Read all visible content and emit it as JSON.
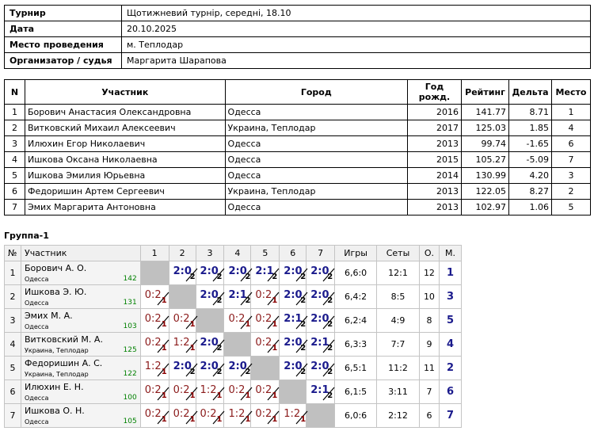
{
  "info": [
    {
      "label": "Турнир",
      "value": "Щотижневий турнір, середні, 18.10"
    },
    {
      "label": "Дата",
      "value": "20.10.2025"
    },
    {
      "label": "Место проведения",
      "value": "м. Теплодар"
    },
    {
      "label": "Организатор / судья",
      "value": "Маргарита Шарапова"
    }
  ],
  "participants": {
    "headers": [
      "N",
      "Участник",
      "Город",
      "Год рожд.",
      "Рейтинг",
      "Дельта",
      "Место"
    ],
    "rows": [
      [
        "1",
        "Борович Анастасия Олександровна",
        "Одесса",
        "2016",
        "141.77",
        "8.71",
        "1"
      ],
      [
        "2",
        "Витковский Михаил Алексеевич",
        "Украина, Теплодар",
        "2017",
        "125.03",
        "1.85",
        "4"
      ],
      [
        "3",
        "Илюхин Егор Николаевич",
        "Одесса",
        "2013",
        "99.74",
        "-1.65",
        "6"
      ],
      [
        "4",
        "Ишкова Оксана Николаевна",
        "Одесса",
        "2015",
        "105.27",
        "-5.09",
        "7"
      ],
      [
        "5",
        "Ишкова Эмилия Юрьевна",
        "Одесса",
        "2014",
        "130.99",
        "4.20",
        "3"
      ],
      [
        "6",
        "Федоришин Артем Сергеевич",
        "Украина, Теплодар",
        "2013",
        "122.05",
        "8.27",
        "2"
      ],
      [
        "7",
        "Эмих Маргарита Антоновна",
        "Одесса",
        "2013",
        "102.97",
        "1.06",
        "5"
      ]
    ]
  },
  "group": {
    "title": "Группа-1",
    "headers": [
      "№",
      "Участник",
      "1",
      "2",
      "3",
      "4",
      "5",
      "6",
      "7",
      "Игры",
      "Сеты",
      "О.",
      "М."
    ],
    "rows": [
      {
        "n": "1",
        "name": "Борович А. О.",
        "city": "Одесса",
        "rating": "142",
        "cells": [
          null,
          [
            "2:0",
            "2"
          ],
          [
            "2:0",
            "2"
          ],
          [
            "2:0",
            "2"
          ],
          [
            "2:1",
            "2"
          ],
          [
            "2:0",
            "2"
          ],
          [
            "2:0",
            "2"
          ]
        ],
        "games": "6,6:0",
        "sets": "12:1",
        "points": "12",
        "place": "1"
      },
      {
        "n": "2",
        "name": "Ишкова Э. Ю.",
        "city": "Одесса",
        "rating": "131",
        "cells": [
          [
            "0:2",
            "1"
          ],
          null,
          [
            "2:0",
            "2"
          ],
          [
            "2:1",
            "2"
          ],
          [
            "0:2",
            "1"
          ],
          [
            "2:0",
            "2"
          ],
          [
            "2:0",
            "2"
          ]
        ],
        "games": "6,4:2",
        "sets": "8:5",
        "points": "10",
        "place": "3"
      },
      {
        "n": "3",
        "name": "Эмих М. А.",
        "city": "Одесса",
        "rating": "103",
        "cells": [
          [
            "0:2",
            "1"
          ],
          [
            "0:2",
            "1"
          ],
          null,
          [
            "0:2",
            "1"
          ],
          [
            "0:2",
            "1"
          ],
          [
            "2:1",
            "2"
          ],
          [
            "2:0",
            "2"
          ]
        ],
        "games": "6,2:4",
        "sets": "4:9",
        "points": "8",
        "place": "5"
      },
      {
        "n": "4",
        "name": "Витковский М. А.",
        "city": "Украина, Теплодар",
        "rating": "125",
        "cells": [
          [
            "0:2",
            "1"
          ],
          [
            "1:2",
            "1"
          ],
          [
            "2:0",
            "2"
          ],
          null,
          [
            "0:2",
            "1"
          ],
          [
            "2:0",
            "2"
          ],
          [
            "2:1",
            "2"
          ]
        ],
        "games": "6,3:3",
        "sets": "7:7",
        "points": "9",
        "place": "4"
      },
      {
        "n": "5",
        "name": "Федоришин А. С.",
        "city": "Украина, Теплодар",
        "rating": "122",
        "cells": [
          [
            "1:2",
            "1"
          ],
          [
            "2:0",
            "2"
          ],
          [
            "2:0",
            "2"
          ],
          [
            "2:0",
            "2"
          ],
          null,
          [
            "2:0",
            "2"
          ],
          [
            "2:0",
            "2"
          ]
        ],
        "games": "6,5:1",
        "sets": "11:2",
        "points": "11",
        "place": "2"
      },
      {
        "n": "6",
        "name": "Илюхин Е. Н.",
        "city": "Одесса",
        "rating": "100",
        "cells": [
          [
            "0:2",
            "1"
          ],
          [
            "0:2",
            "1"
          ],
          [
            "1:2",
            "1"
          ],
          [
            "0:2",
            "1"
          ],
          [
            "0:2",
            "1"
          ],
          null,
          [
            "2:1",
            "2"
          ]
        ],
        "games": "6,1:5",
        "sets": "3:11",
        "points": "7",
        "place": "6"
      },
      {
        "n": "7",
        "name": "Ишкова О. Н.",
        "city": "Одесса",
        "rating": "105",
        "cells": [
          [
            "0:2",
            "1"
          ],
          [
            "0:2",
            "1"
          ],
          [
            "0:2",
            "1"
          ],
          [
            "1:2",
            "1"
          ],
          [
            "0:2",
            "1"
          ],
          [
            "1:2",
            "1"
          ],
          null
        ],
        "games": "6,0:6",
        "sets": "2:12",
        "points": "6",
        "place": "7"
      }
    ]
  }
}
